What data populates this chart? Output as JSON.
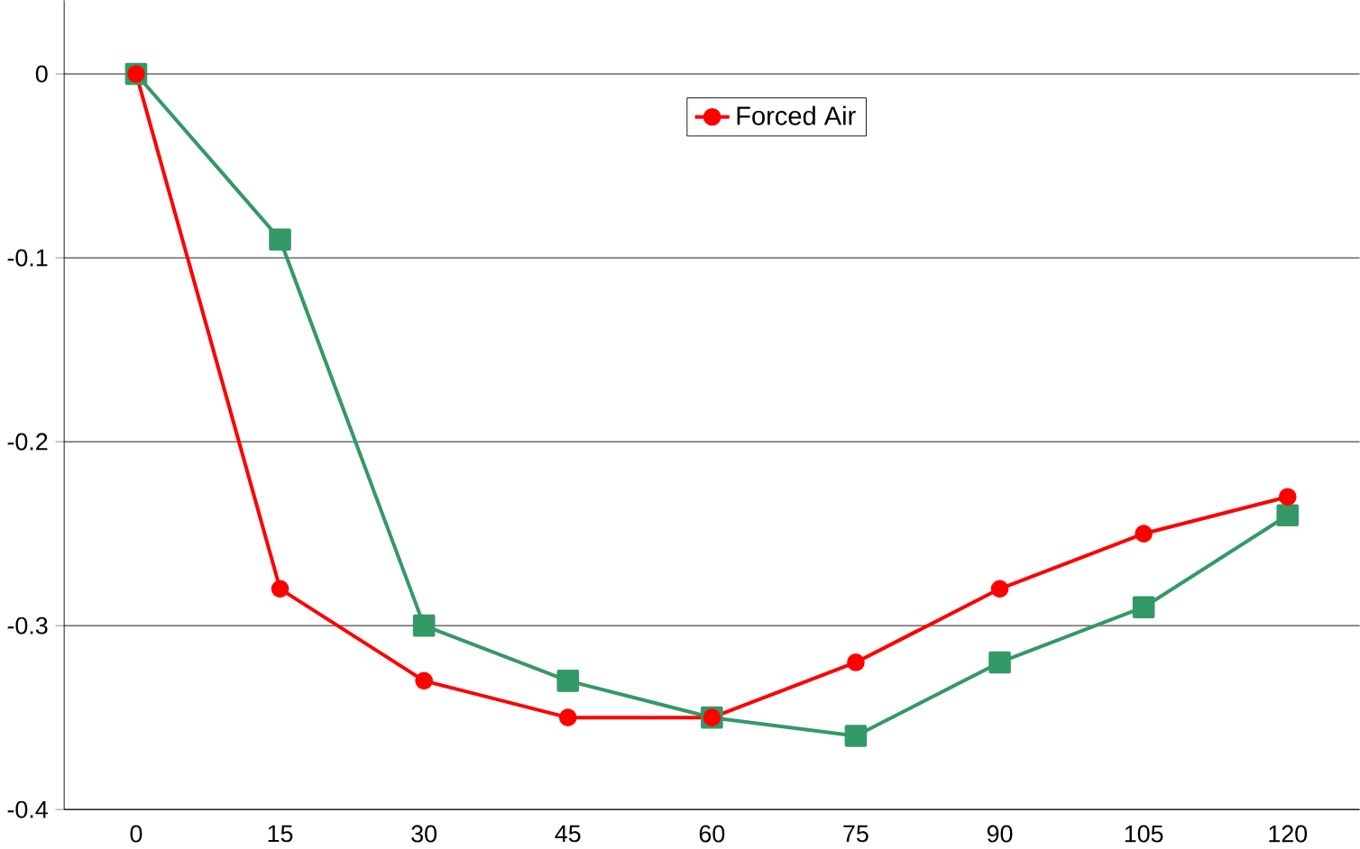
{
  "chart_data": {
    "type": "line",
    "categories": [
      "0",
      "15",
      "30",
      "45",
      "60",
      "75",
      "90",
      "105",
      "120"
    ],
    "series": [
      {
        "color": "#339966",
        "marker": "square",
        "values": [
          0,
          -0.09,
          -0.3,
          -0.33,
          -0.35,
          -0.36,
          -0.32,
          -0.29,
          -0.24
        ]
      },
      {
        "name": "Forced Air",
        "color": "#ff0000",
        "marker": "circle",
        "values": [
          0,
          -0.28,
          -0.33,
          -0.35,
          -0.35,
          -0.32,
          -0.28,
          -0.25,
          -0.23
        ]
      }
    ],
    "ylim": [
      -0.4,
      0.04
    ],
    "yticks": [
      -0.4,
      -0.3,
      -0.2,
      -0.1,
      0
    ],
    "grid": "y",
    "legend": "top",
    "line_style": "solid"
  }
}
